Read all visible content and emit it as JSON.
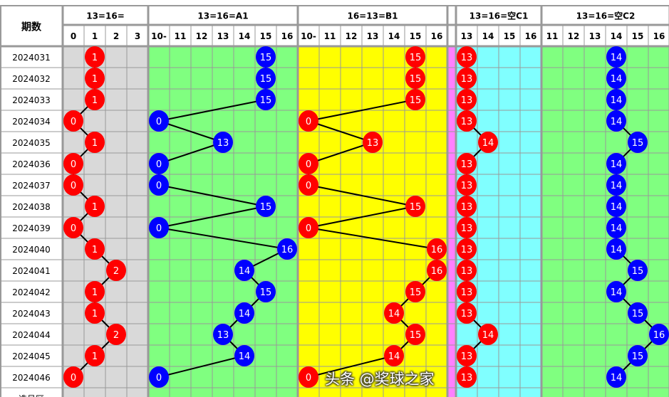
{
  "chart_data": {
    "type": "table",
    "row_header": "期数",
    "rows": [
      "2024031",
      "2024032",
      "2024033",
      "2024034",
      "2024035",
      "2024036",
      "2024037",
      "2024038",
      "2024039",
      "2024040",
      "2024041",
      "2024042",
      "2024043",
      "2024044",
      "2024045",
      "2024046"
    ],
    "footer_row_label": "选号区",
    "gap_color": "#ff80ff",
    "groups": [
      {
        "title": "13=16=",
        "columns": [
          "0",
          "1",
          "2",
          "3"
        ],
        "background": "#d9d9d9",
        "ball_color": "#ff0000",
        "values": [
          "1",
          "1",
          "1",
          "0",
          "1",
          "0",
          "0",
          "1",
          "0",
          "1",
          "2",
          "1",
          "1",
          "2",
          "1",
          "0"
        ]
      },
      {
        "title": "13=16=A1",
        "columns": [
          "10-",
          "11",
          "12",
          "13",
          "14",
          "15",
          "16"
        ],
        "background": "#80ff80",
        "ball_color": "#0000ff",
        "values": [
          "15",
          "15",
          "15",
          "0",
          "13",
          "0",
          "0",
          "15",
          "0",
          "16",
          "14",
          "15",
          "14",
          "13",
          "14",
          "0"
        ]
      },
      {
        "title": "16=13=B1",
        "columns": [
          "10-",
          "11",
          "12",
          "13",
          "14",
          "15",
          "16"
        ],
        "background": "#ffff00",
        "ball_color": "#ff0000",
        "values": [
          "15",
          "15",
          "15",
          "0",
          "13",
          "0",
          "0",
          "15",
          "0",
          "16",
          "16",
          "15",
          "14",
          "15",
          "14",
          "0"
        ]
      },
      {
        "title": "13=16=空C1",
        "columns": [
          "13",
          "14",
          "15",
          "16"
        ],
        "background": "#80ffff",
        "ball_color": "#ff0000",
        "values": [
          "13",
          "13",
          "13",
          "13",
          "14",
          "13",
          "13",
          "13",
          "13",
          "13",
          "13",
          "13",
          "13",
          "14",
          "13",
          "13"
        ]
      },
      {
        "title": "13=16=空C2",
        "columns": [
          "11",
          "12",
          "13",
          "14",
          "15",
          "16"
        ],
        "background": "#80ff80",
        "ball_color": "#0000ff",
        "values": [
          "14",
          "14",
          "14",
          "14",
          "15",
          "14",
          "14",
          "14",
          "14",
          "14",
          "15",
          "14",
          "15",
          "16",
          "15",
          "14"
        ]
      }
    ]
  },
  "watermark": "头条 @奖球之家"
}
